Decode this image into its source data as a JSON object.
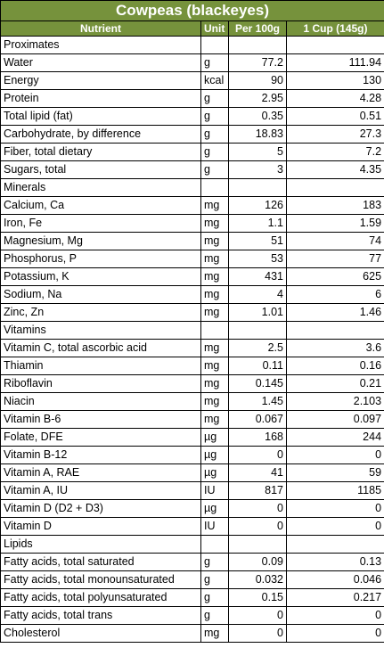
{
  "title": "Cowpeas (blackeyes)",
  "headers": {
    "nutrient": "Nutrient",
    "unit": "Unit",
    "per100": "Per 100g",
    "cup": "1 Cup (145g)"
  },
  "colors": {
    "header_bg": "#76923c",
    "header_text": "#ffffff",
    "grid": "#000000"
  },
  "rows": [
    {
      "name": "Proximates",
      "unit": "",
      "per100": "",
      "cup": ""
    },
    {
      "name": "Water",
      "unit": "g",
      "per100": "77.2",
      "cup": "111.94"
    },
    {
      "name": "Energy",
      "unit": "kcal",
      "per100": "90",
      "cup": "130"
    },
    {
      "name": "Protein",
      "unit": "g",
      "per100": "2.95",
      "cup": "4.28"
    },
    {
      "name": "Total lipid (fat)",
      "unit": "g",
      "per100": "0.35",
      "cup": "0.51"
    },
    {
      "name": "Carbohydrate, by difference",
      "unit": "g",
      "per100": "18.83",
      "cup": "27.3"
    },
    {
      "name": "Fiber, total dietary",
      "unit": "g",
      "per100": "5",
      "cup": "7.2"
    },
    {
      "name": "Sugars, total",
      "unit": "g",
      "per100": "3",
      "cup": "4.35"
    },
    {
      "name": "Minerals",
      "unit": "",
      "per100": "",
      "cup": ""
    },
    {
      "name": "Calcium, Ca",
      "unit": "mg",
      "per100": "126",
      "cup": "183"
    },
    {
      "name": "Iron, Fe",
      "unit": "mg",
      "per100": "1.1",
      "cup": "1.59"
    },
    {
      "name": "Magnesium, Mg",
      "unit": "mg",
      "per100": "51",
      "cup": "74"
    },
    {
      "name": "Phosphorus, P",
      "unit": "mg",
      "per100": "53",
      "cup": "77"
    },
    {
      "name": "Potassium, K",
      "unit": "mg",
      "per100": "431",
      "cup": "625"
    },
    {
      "name": "Sodium, Na",
      "unit": "mg",
      "per100": "4",
      "cup": "6"
    },
    {
      "name": "Zinc, Zn",
      "unit": "mg",
      "per100": "1.01",
      "cup": "1.46"
    },
    {
      "name": "Vitamins",
      "unit": "",
      "per100": "",
      "cup": ""
    },
    {
      "name": "Vitamin C, total ascorbic acid",
      "unit": "mg",
      "per100": "2.5",
      "cup": "3.6"
    },
    {
      "name": "Thiamin",
      "unit": "mg",
      "per100": "0.11",
      "cup": "0.16"
    },
    {
      "name": "Riboflavin",
      "unit": "mg",
      "per100": "0.145",
      "cup": "0.21"
    },
    {
      "name": "Niacin",
      "unit": "mg",
      "per100": "1.45",
      "cup": "2.103"
    },
    {
      "name": "Vitamin B-6",
      "unit": "mg",
      "per100": "0.067",
      "cup": "0.097"
    },
    {
      "name": "Folate, DFE",
      "unit": "µg",
      "per100": "168",
      "cup": "244"
    },
    {
      "name": "Vitamin B-12",
      "unit": "µg",
      "per100": "0",
      "cup": "0"
    },
    {
      "name": "Vitamin A, RAE",
      "unit": "µg",
      "per100": "41",
      "cup": "59"
    },
    {
      "name": "Vitamin A, IU",
      "unit": "IU",
      "per100": "817",
      "cup": "1185"
    },
    {
      "name": "Vitamin D (D2 + D3)",
      "unit": "µg",
      "per100": "0",
      "cup": "0"
    },
    {
      "name": "Vitamin D",
      "unit": "IU",
      "per100": "0",
      "cup": "0"
    },
    {
      "name": "Lipids",
      "unit": "",
      "per100": "",
      "cup": ""
    },
    {
      "name": "Fatty acids, total saturated",
      "unit": "g",
      "per100": "0.09",
      "cup": "0.13"
    },
    {
      "name": "Fatty acids, total monounsaturated",
      "unit": "g",
      "per100": "0.032",
      "cup": "0.046"
    },
    {
      "name": "Fatty acids, total polyunsaturated",
      "unit": "g",
      "per100": "0.15",
      "cup": "0.217"
    },
    {
      "name": "Fatty acids, total trans",
      "unit": "g",
      "per100": "0",
      "cup": "0"
    },
    {
      "name": "Cholesterol",
      "unit": "mg",
      "per100": "0",
      "cup": "0"
    }
  ]
}
